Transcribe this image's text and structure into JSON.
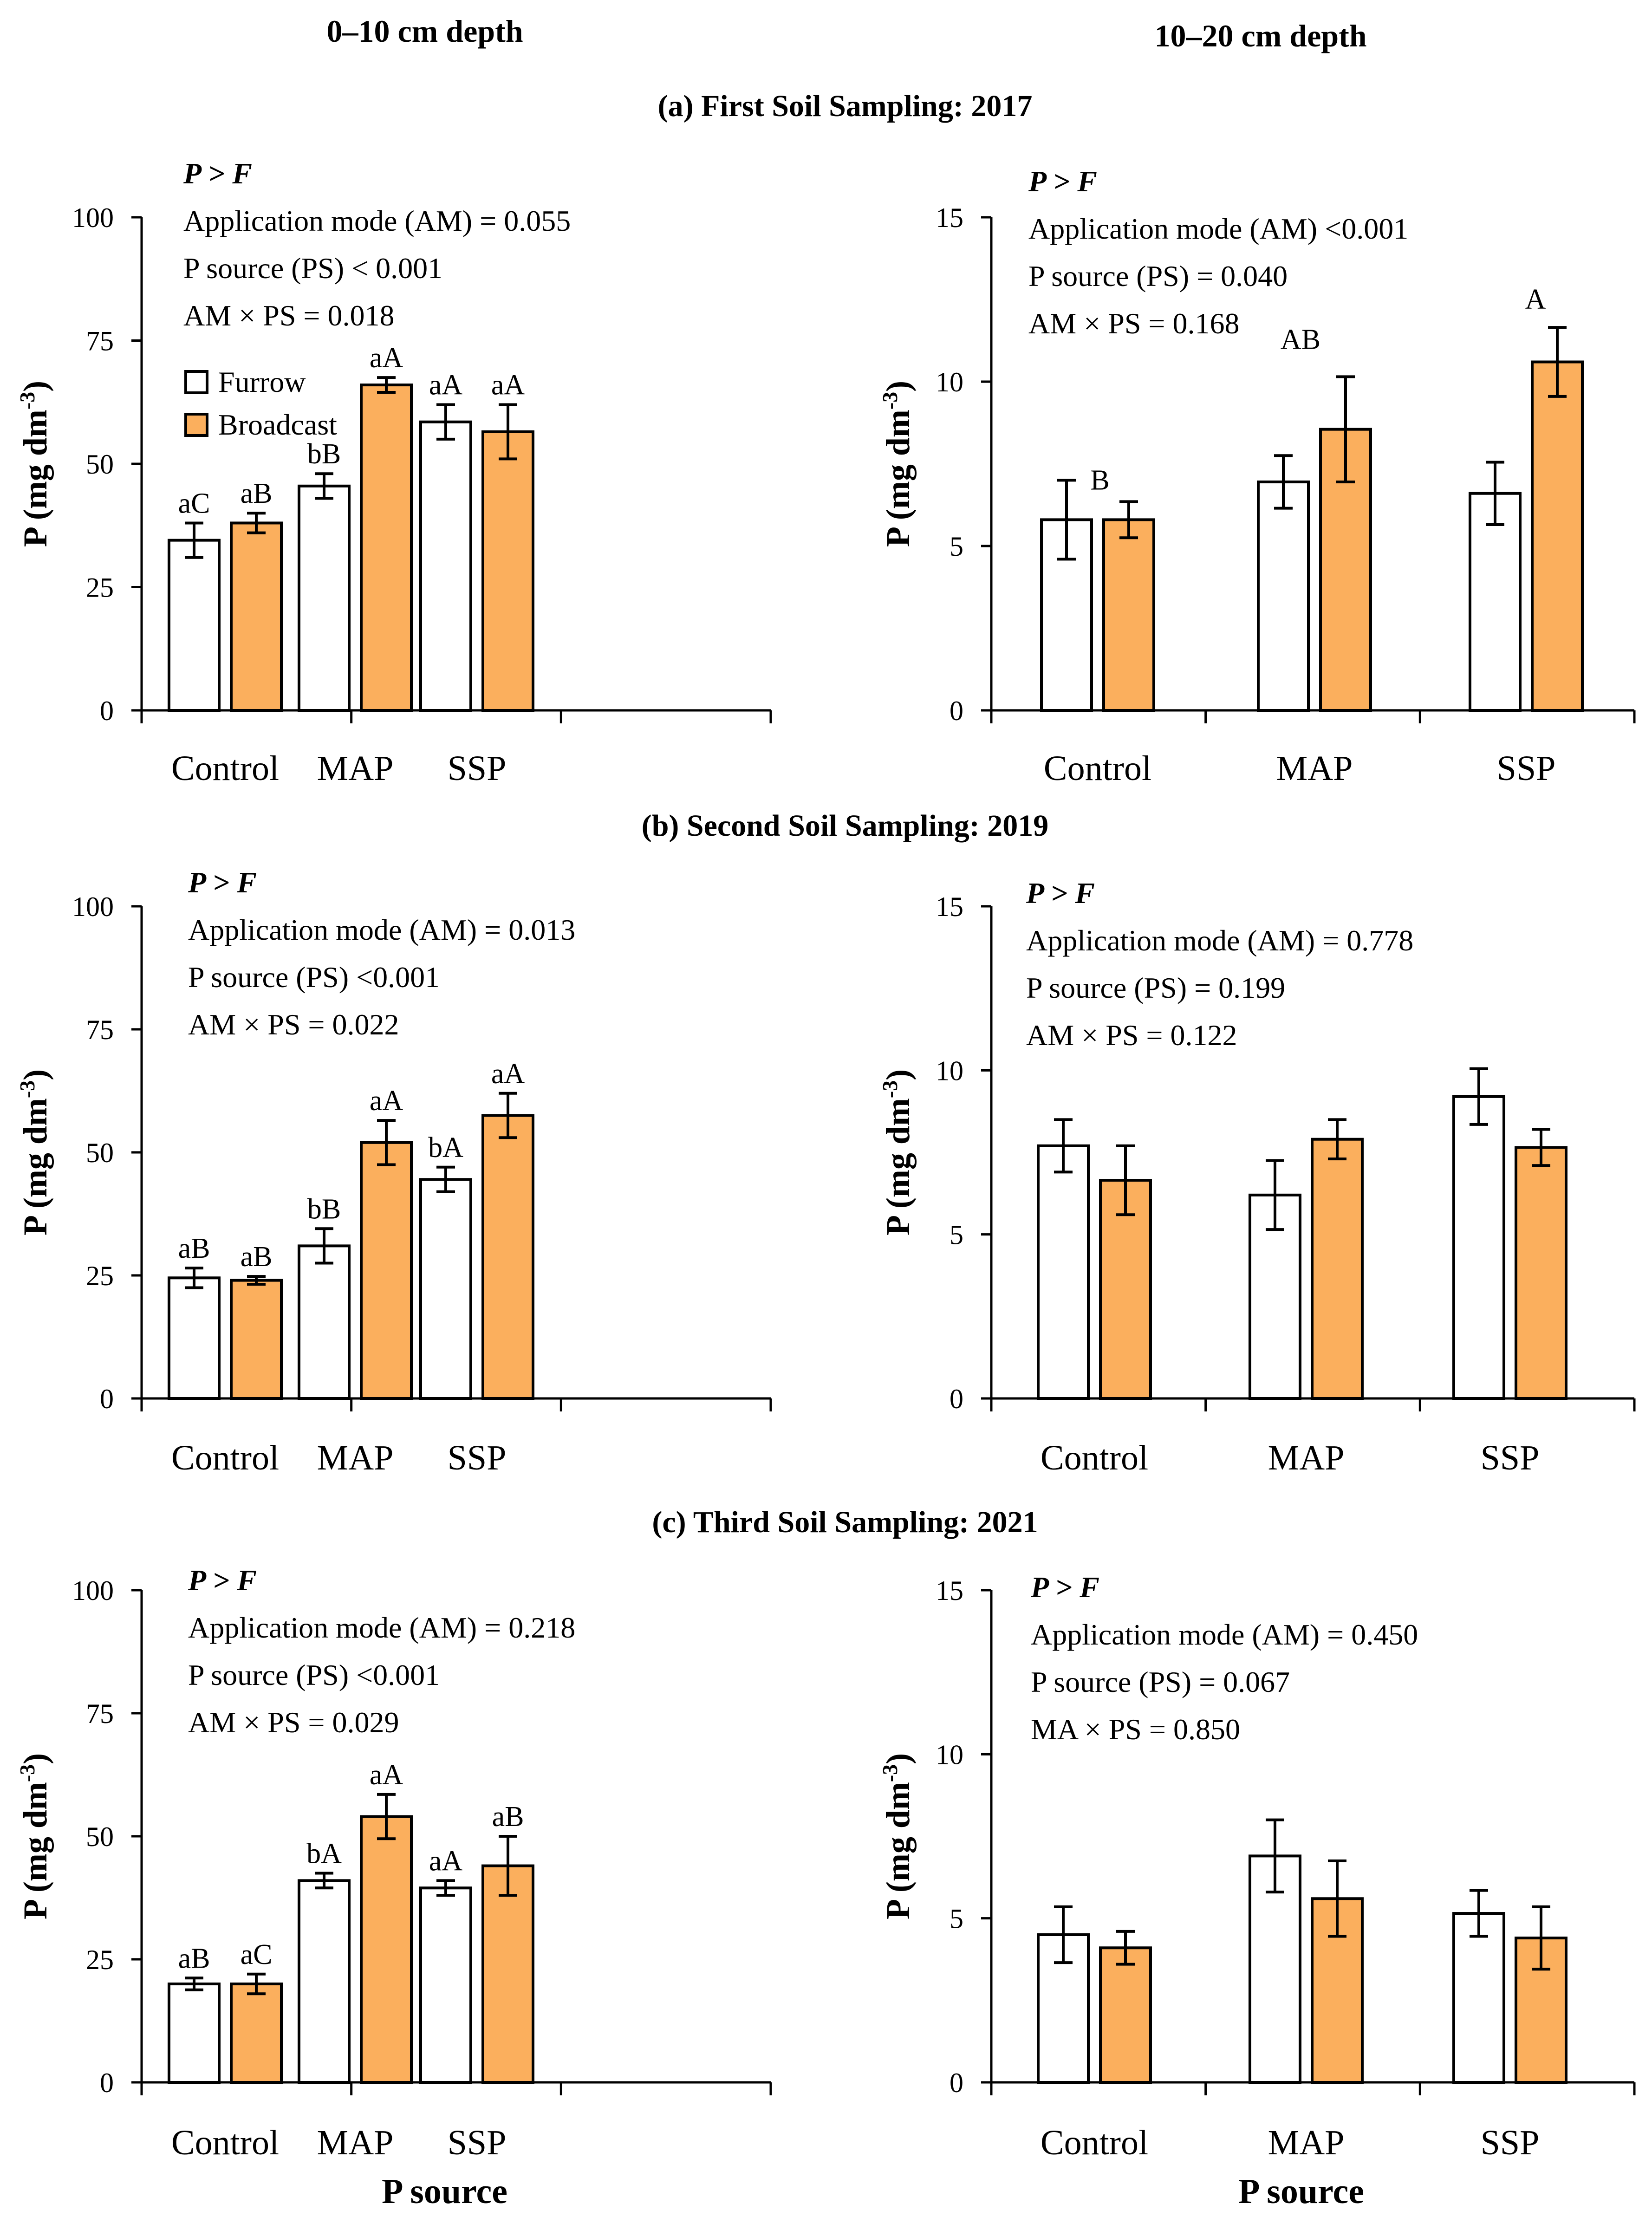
{
  "headers": {
    "left_depth": "0–10 cm depth",
    "right_depth": "10–20 cm depth",
    "section_a": "(a)  First Soil Sampling: 2017",
    "section_b": "(b) Second Soil Sampling: 2019",
    "section_c": "(c) Third Soil Sampling: 2021"
  },
  "legend": {
    "furrow": "Furrow",
    "broadcast": "Broadcast"
  },
  "colors": {
    "furrow": "#ffffff",
    "broadcast": "#fbaf5d",
    "stroke": "#000000"
  },
  "chart_data": [
    {
      "type": "bar",
      "id": "a-0-10",
      "categories": [
        "Control",
        "MAP",
        "SSP"
      ],
      "series": [
        {
          "name": "Furrow",
          "values": [
            34.5,
            45.5,
            58.5
          ],
          "errors": [
            3.5,
            2.5,
            3.5
          ],
          "labels": [
            "aC",
            "bB",
            "aA"
          ]
        },
        {
          "name": "Broadcast",
          "values": [
            38,
            66,
            56.5
          ],
          "errors": [
            2,
            1.5,
            5.5
          ],
          "labels": [
            "aB",
            "aA",
            "aA"
          ]
        }
      ],
      "ylabel": "P (mg dm-3)",
      "xlabel": "",
      "ylim": [
        0,
        100
      ],
      "yticks": [
        "0",
        "25",
        "50",
        "75",
        "100"
      ],
      "stats_head": "P > F",
      "stats": [
        "Application mode (AM) = 0.055",
        "P source (PS) < 0.001",
        "AM × PS = 0.018"
      ],
      "show_legend": true
    },
    {
      "type": "bar",
      "id": "a-10-20",
      "categories": [
        "Control",
        "MAP",
        "SSP"
      ],
      "series": [
        {
          "name": "Furrow",
          "values": [
            5.8,
            6.95,
            6.6
          ],
          "errors": [
            1.2,
            0.8,
            0.95
          ],
          "labels": [
            "",
            "",
            ""
          ]
        },
        {
          "name": "Broadcast",
          "values": [
            5.8,
            8.55,
            10.6
          ],
          "errors": [
            0.55,
            1.6,
            1.05
          ],
          "labels": [
            "",
            "",
            ""
          ]
        }
      ],
      "group_labels": [
        "B",
        "AB",
        "A"
      ],
      "ylabel": "P (mg dm-3)",
      "xlabel": "",
      "ylim": [
        0,
        15
      ],
      "yticks": [
        "0",
        "5",
        "10",
        "15"
      ],
      "stats_head": "P > F",
      "stats": [
        "Application mode (AM) <0.001",
        "P source (PS) = 0.040",
        "AM × PS = 0.168"
      ],
      "show_legend": false
    },
    {
      "type": "bar",
      "id": "b-0-10",
      "categories": [
        "Control",
        "MAP",
        "SSP"
      ],
      "series": [
        {
          "name": "Furrow",
          "values": [
            24.5,
            31,
            44.5
          ],
          "errors": [
            2,
            3.5,
            2.5
          ],
          "labels": [
            "aB",
            "bB",
            "bA"
          ]
        },
        {
          "name": "Broadcast",
          "values": [
            24,
            52,
            57.5
          ],
          "errors": [
            0.8,
            4.5,
            4.5
          ],
          "labels": [
            "aB",
            "aA",
            "aA"
          ]
        }
      ],
      "ylabel": "P (mg dm-3)",
      "xlabel": "",
      "ylim": [
        0,
        100
      ],
      "yticks": [
        "0",
        "25",
        "50",
        "75",
        "100"
      ],
      "stats_head": "P > F",
      "stats": [
        "Application mode (AM) = 0.013",
        "P source (PS) <0.001",
        "AM × PS = 0.022"
      ],
      "show_legend": false
    },
    {
      "type": "bar",
      "id": "b-10-20",
      "categories": [
        "Control",
        "MAP",
        "SSP"
      ],
      "series": [
        {
          "name": "Furrow",
          "values": [
            7.7,
            6.2,
            9.2
          ],
          "errors": [
            0.8,
            1.05,
            0.85
          ],
          "labels": [
            "",
            "",
            ""
          ]
        },
        {
          "name": "Broadcast",
          "values": [
            6.65,
            7.9,
            7.65
          ],
          "errors": [
            1.05,
            0.6,
            0.55
          ],
          "labels": [
            "",
            "",
            ""
          ]
        }
      ],
      "ylabel": "P (mg dm-3)",
      "xlabel": "",
      "ylim": [
        0,
        15
      ],
      "yticks": [
        "0",
        "5",
        "10",
        "15"
      ],
      "stats_head": "P > F",
      "stats": [
        "Application mode (AM) = 0.778",
        "P source (PS) = 0.199",
        "AM × PS = 0.122"
      ],
      "show_legend": false
    },
    {
      "type": "bar",
      "id": "c-0-10",
      "categories": [
        "Control",
        "MAP",
        "SSP"
      ],
      "series": [
        {
          "name": "Furrow",
          "values": [
            20,
            41,
            39.5
          ],
          "errors": [
            1.2,
            1.5,
            1.5
          ],
          "labels": [
            "aB",
            "bA",
            "aA"
          ]
        },
        {
          "name": "Broadcast",
          "values": [
            20,
            54,
            44
          ],
          "errors": [
            2,
            4.5,
            6
          ],
          "labels": [
            "aC",
            "aA",
            "aB"
          ]
        }
      ],
      "ylabel": "P (mg dm-3)",
      "xlabel": "P source",
      "ylim": [
        0,
        100
      ],
      "yticks": [
        "0",
        "25",
        "50",
        "75",
        "100"
      ],
      "stats_head": "P > F",
      "stats": [
        "Application mode (AM) = 0.218",
        "P source (PS) <0.001",
        "AM × PS = 0.029"
      ],
      "show_legend": false
    },
    {
      "type": "bar",
      "id": "c-10-20",
      "categories": [
        "Control",
        "MAP",
        "SSP"
      ],
      "series": [
        {
          "name": "Furrow",
          "values": [
            4.5,
            6.9,
            5.15
          ],
          "errors": [
            0.85,
            1.1,
            0.7
          ],
          "labels": [
            "",
            "",
            ""
          ]
        },
        {
          "name": "Broadcast",
          "values": [
            4.1,
            5.6,
            4.4
          ],
          "errors": [
            0.5,
            1.15,
            0.95
          ],
          "labels": [
            "",
            "",
            ""
          ]
        }
      ],
      "ylabel": "P (mg dm-3)",
      "xlabel": "P source",
      "ylim": [
        0,
        15
      ],
      "yticks": [
        "0",
        "5",
        "10",
        "15"
      ],
      "stats_head": "P > F",
      "stats": [
        "Application mode (AM) = 0.450",
        "P source (PS) = 0.067",
        "MA × PS = 0.850"
      ],
      "show_legend": false
    }
  ]
}
